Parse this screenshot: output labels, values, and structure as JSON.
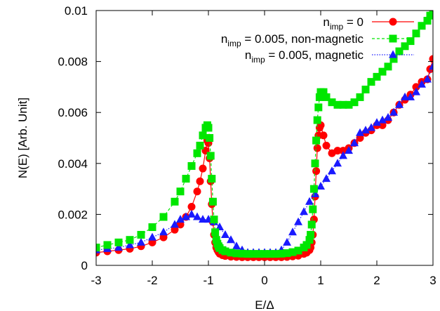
{
  "chart_data": {
    "type": "scatter",
    "xlabel": "E/Δ",
    "ylabel": "N(E) [Arb. Unit]",
    "xlim": [
      -3,
      3
    ],
    "ylim": [
      0,
      0.01
    ],
    "xticks": [
      "-3",
      "-2",
      "-1",
      "0",
      "1",
      "2",
      "3"
    ],
    "yticks": [
      "0",
      "0.002",
      "0.004",
      "0.006",
      "0.008",
      "0.01"
    ],
    "grid": false,
    "legend_position": "top-right",
    "series": [
      {
        "name": "n_imp = 0",
        "legend_main": "n",
        "legend_sub": "imp",
        "legend_rest": " = 0",
        "color": "#ff0000",
        "marker": "circle",
        "line": "solid",
        "x": [
          -3.0,
          -2.8,
          -2.6,
          -2.4,
          -2.2,
          -2.0,
          -1.8,
          -1.6,
          -1.5,
          -1.4,
          -1.3,
          -1.2,
          -1.15,
          -1.1,
          -1.05,
          -1.02,
          -1.0,
          -0.98,
          -0.96,
          -0.94,
          -0.92,
          -0.9,
          -0.88,
          -0.86,
          -0.84,
          -0.82,
          -0.8,
          -0.75,
          -0.7,
          -0.6,
          -0.5,
          -0.4,
          -0.3,
          -0.2,
          -0.1,
          0.0,
          0.1,
          0.2,
          0.3,
          0.4,
          0.5,
          0.6,
          0.7,
          0.75,
          0.8,
          0.82,
          0.84,
          0.86,
          0.88,
          0.9,
          0.92,
          0.94,
          0.96,
          0.98,
          1.0,
          1.05,
          1.1,
          1.2,
          1.3,
          1.4,
          1.5,
          1.6,
          1.7,
          1.8,
          1.9,
          2.0,
          2.1,
          2.2,
          2.3,
          2.4,
          2.5,
          2.6,
          2.7,
          2.8,
          2.9,
          2.95,
          3.0
        ],
        "y": [
          0.0005,
          0.00055,
          0.0006,
          0.00065,
          0.00075,
          0.0009,
          0.0011,
          0.0014,
          0.0016,
          0.0019,
          0.0023,
          0.0029,
          0.0033,
          0.0038,
          0.0045,
          0.0049,
          0.0048,
          0.0042,
          0.0033,
          0.0024,
          0.0017,
          0.0012,
          0.0009,
          0.0007,
          0.0006,
          0.00052,
          0.00046,
          0.0004,
          0.00037,
          0.00034,
          0.00033,
          0.00032,
          0.00032,
          0.00032,
          0.00032,
          0.00032,
          0.00032,
          0.00032,
          0.00032,
          0.00033,
          0.00035,
          0.00038,
          0.00045,
          0.0005,
          0.0006,
          0.0007,
          0.0009,
          0.0012,
          0.0018,
          0.0027,
          0.0037,
          0.0046,
          0.0051,
          0.0054,
          0.0055,
          0.0051,
          0.0047,
          0.0044,
          0.0045,
          0.0045,
          0.0046,
          0.0048,
          0.005,
          0.0052,
          0.0053,
          0.0055,
          0.0055,
          0.0057,
          0.006,
          0.0063,
          0.0065,
          0.0067,
          0.007,
          0.0072,
          0.0073,
          0.0077,
          0.0081
        ]
      },
      {
        "name": "n_imp = 0.005, non-magnetic",
        "legend_main": "n",
        "legend_sub": "imp",
        "legend_rest": " = 0.005, non-magnetic",
        "color": "#00e600",
        "marker": "square",
        "line": "dashed",
        "x": [
          -3.0,
          -2.8,
          -2.6,
          -2.4,
          -2.2,
          -2.0,
          -1.8,
          -1.6,
          -1.5,
          -1.4,
          -1.3,
          -1.2,
          -1.15,
          -1.1,
          -1.05,
          -1.02,
          -1.0,
          -0.98,
          -0.96,
          -0.94,
          -0.92,
          -0.9,
          -0.88,
          -0.86,
          -0.84,
          -0.82,
          -0.8,
          -0.75,
          -0.7,
          -0.6,
          -0.5,
          -0.4,
          -0.3,
          -0.2,
          -0.1,
          0.0,
          0.1,
          0.2,
          0.3,
          0.4,
          0.5,
          0.6,
          0.7,
          0.75,
          0.8,
          0.82,
          0.84,
          0.86,
          0.88,
          0.9,
          0.92,
          0.94,
          0.96,
          0.98,
          1.0,
          1.05,
          1.1,
          1.2,
          1.3,
          1.4,
          1.5,
          1.6,
          1.7,
          1.8,
          1.9,
          2.0,
          2.1,
          2.2,
          2.3,
          2.4,
          2.5,
          2.6,
          2.7,
          2.8,
          2.9,
          2.95,
          3.0
        ],
        "y": [
          0.0007,
          0.0008,
          0.0009,
          0.001,
          0.0012,
          0.0015,
          0.0019,
          0.0025,
          0.0029,
          0.0034,
          0.0039,
          0.0044,
          0.0047,
          0.0051,
          0.0054,
          0.0055,
          0.0054,
          0.005,
          0.0043,
          0.0034,
          0.0025,
          0.0018,
          0.0013,
          0.001,
          0.00085,
          0.00075,
          0.00068,
          0.0006,
          0.00055,
          0.0005,
          0.00047,
          0.00046,
          0.00045,
          0.00045,
          0.00045,
          0.00045,
          0.00045,
          0.00045,
          0.00046,
          0.00048,
          0.00052,
          0.00058,
          0.0007,
          0.0008,
          0.001,
          0.0012,
          0.0016,
          0.0022,
          0.003,
          0.004,
          0.0049,
          0.0057,
          0.0062,
          0.0066,
          0.0068,
          0.0068,
          0.0066,
          0.0064,
          0.0063,
          0.0063,
          0.0063,
          0.0064,
          0.0066,
          0.0069,
          0.0072,
          0.0074,
          0.0076,
          0.0078,
          0.0081,
          0.0084,
          0.0086,
          0.0088,
          0.0091,
          0.0094,
          0.0096,
          0.0098,
          0.01
        ]
      },
      {
        "name": "n_imp = 0.005, magnetic",
        "legend_main": "n",
        "legend_sub": "imp",
        "legend_rest": " = 0.005, magnetic",
        "color": "#1a1aff",
        "marker": "triangle",
        "line": "dotted",
        "x": [
          -3.0,
          -2.8,
          -2.6,
          -2.4,
          -2.2,
          -2.0,
          -1.8,
          -1.6,
          -1.5,
          -1.4,
          -1.3,
          -1.2,
          -1.1,
          -1.0,
          -0.9,
          -0.8,
          -0.7,
          -0.6,
          -0.5,
          -0.4,
          -0.3,
          -0.2,
          -0.1,
          0.0,
          0.1,
          0.2,
          0.3,
          0.4,
          0.5,
          0.6,
          0.7,
          0.8,
          0.9,
          1.0,
          1.1,
          1.2,
          1.3,
          1.4,
          1.5,
          1.6,
          1.7,
          1.8,
          1.9,
          2.0,
          2.1,
          2.2,
          2.3,
          2.4,
          2.5,
          2.6,
          2.7,
          2.8,
          2.9,
          3.0
        ],
        "y": [
          0.0006,
          0.00065,
          0.0007,
          0.0008,
          0.0009,
          0.0011,
          0.0013,
          0.0016,
          0.0018,
          0.0019,
          0.002,
          0.0019,
          0.0018,
          0.0018,
          0.0017,
          0.0015,
          0.0012,
          0.001,
          0.00075,
          0.0006,
          0.0005,
          0.0005,
          0.0005,
          0.0005,
          0.0005,
          0.0005,
          0.0006,
          0.0009,
          0.0013,
          0.0017,
          0.0021,
          0.0025,
          0.0028,
          0.0031,
          0.0034,
          0.0037,
          0.004,
          0.0043,
          0.0045,
          0.0048,
          0.0052,
          0.0053,
          0.0054,
          0.0056,
          0.0057,
          0.0058,
          0.006,
          0.0063,
          0.0066,
          0.0066,
          0.0068,
          0.0071,
          0.0073,
          0.0078
        ]
      }
    ]
  }
}
